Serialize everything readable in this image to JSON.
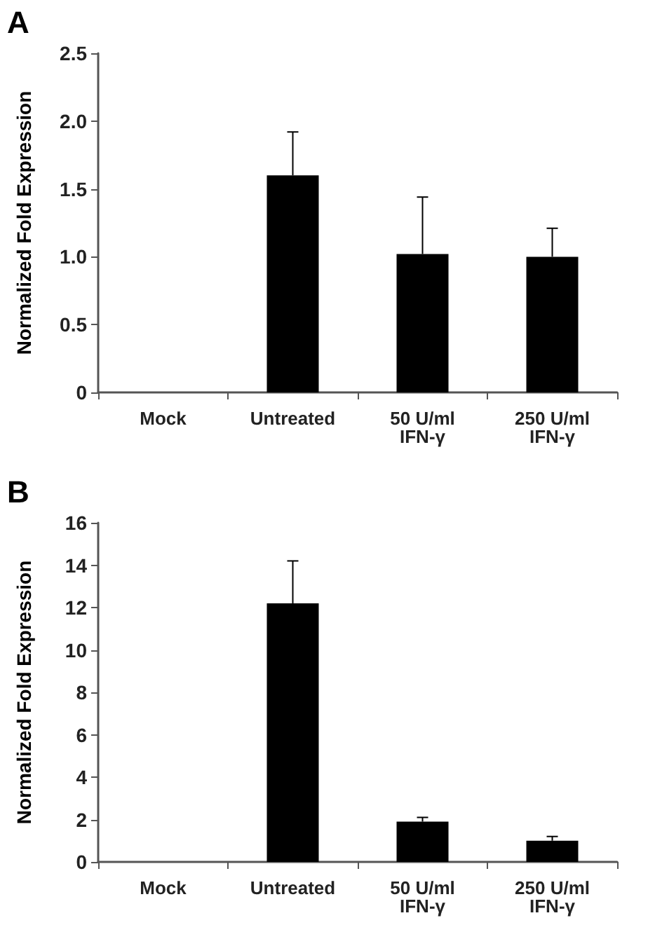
{
  "chart_data": [
    {
      "type": "bar",
      "title": "A",
      "ylabel": "Normalized Fold Expression",
      "categories": [
        "Mock",
        "Untreated",
        "50 U/ml\nIFN-γ",
        "250 U/ml\nIFN-γ"
      ],
      "series": [
        {
          "color": "#000000",
          "values": [
            0,
            1.6,
            1.02,
            1.0
          ],
          "errors": [
            null,
            [
              1.6,
              1.92
            ],
            [
              1.02,
              1.44
            ],
            [
              1.0,
              1.21
            ]
          ]
        }
      ],
      "ylim": [
        0,
        2.5
      ],
      "yticks": [
        0,
        0.5,
        {
          "value": 1,
          "label": "1.0"
        },
        1.5,
        {
          "value": 2,
          "label": "2.0"
        },
        2.5
      ],
      "grid": false
    },
    {
      "type": "bar",
      "title": "B",
      "ylabel": "Normalized Fold Expression",
      "categories": [
        "Mock",
        "Untreated",
        "50 U/ml\nIFN-γ",
        "250 U/ml\nIFN-γ"
      ],
      "series": [
        {
          "color": "#000000",
          "values": [
            0,
            12.2,
            1.9,
            1.0
          ],
          "errors": [
            null,
            [
              12.2,
              14.2
            ],
            [
              1.9,
              2.1
            ],
            [
              1.0,
              1.2
            ]
          ]
        }
      ],
      "ylim": [
        0,
        16
      ],
      "yticks": [
        0,
        2,
        4,
        6,
        8,
        10,
        12,
        14,
        16
      ],
      "grid": false
    }
  ]
}
